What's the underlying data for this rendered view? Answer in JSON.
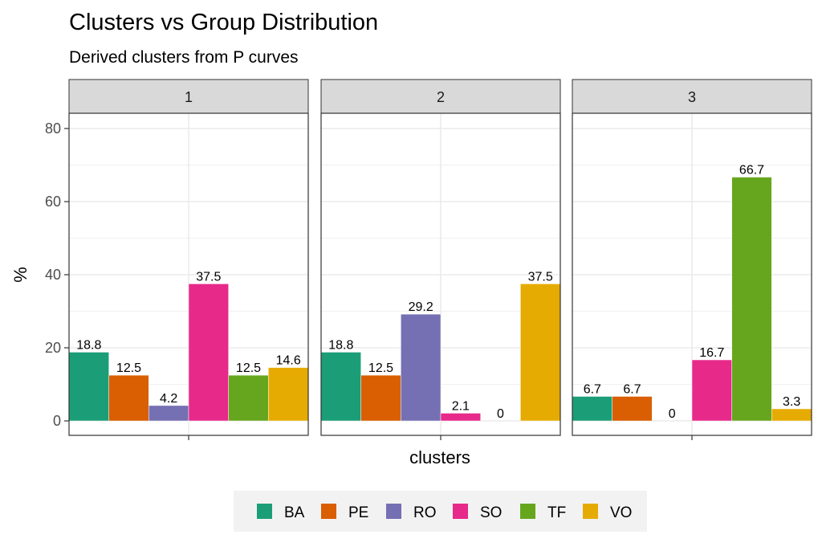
{
  "chart_data": {
    "type": "bar",
    "title": "Clusters vs Group Distribution",
    "subtitle": "Derived clusters from P curves",
    "xlabel": "clusters",
    "ylabel": "%",
    "ylim": [
      -4,
      84.2
    ],
    "yticks": [
      0,
      20,
      40,
      60,
      80
    ],
    "grid": true,
    "legend_position": "bottom",
    "facets": [
      "1",
      "2",
      "3"
    ],
    "categories": [
      "BA",
      "PE",
      "RO",
      "SO",
      "TF",
      "VO"
    ],
    "colors": {
      "BA": "#1B9E77",
      "PE": "#D95F02",
      "RO": "#7570B3",
      "SO": "#E7298A",
      "TF": "#66A61E",
      "VO": "#E6AB02"
    },
    "panels": [
      {
        "facet": "1",
        "values": [
          18.8,
          12.5,
          4.2,
          37.5,
          12.5,
          14.6
        ]
      },
      {
        "facet": "2",
        "values": [
          18.8,
          12.5,
          29.2,
          2.1,
          0,
          37.5
        ]
      },
      {
        "facet": "3",
        "values": [
          6.7,
          6.7,
          0,
          16.7,
          66.7,
          3.3
        ]
      }
    ]
  }
}
